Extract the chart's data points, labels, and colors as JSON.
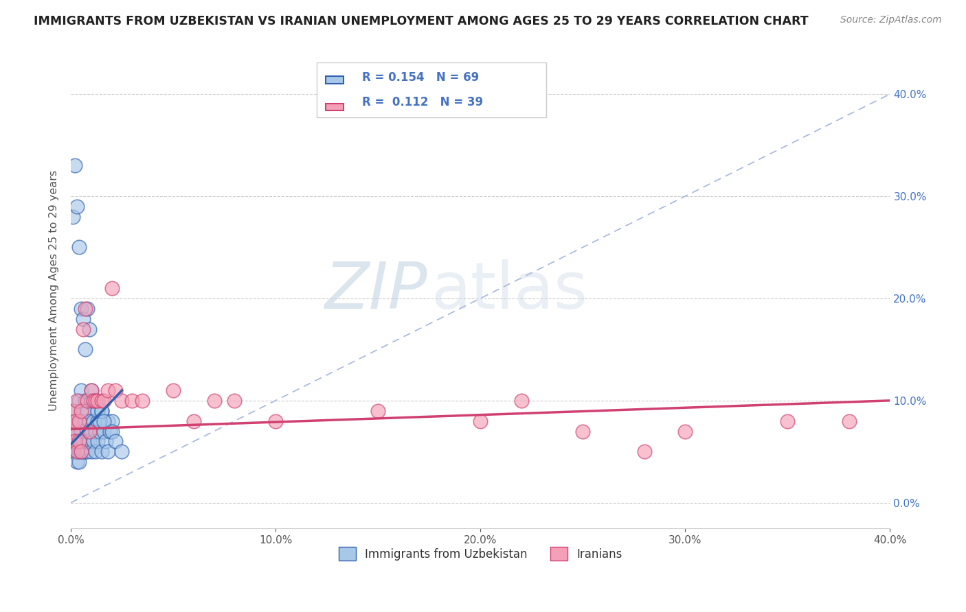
{
  "title": "IMMIGRANTS FROM UZBEKISTAN VS IRANIAN UNEMPLOYMENT AMONG AGES 25 TO 29 YEARS CORRELATION CHART",
  "source": "Source: ZipAtlas.com",
  "ylabel": "Unemployment Among Ages 25 to 29 years",
  "watermark": "ZIPatlas",
  "xlim": [
    0.0,
    0.4
  ],
  "ylim": [
    -0.025,
    0.44
  ],
  "xticks": [
    0.0,
    0.1,
    0.2,
    0.3,
    0.4
  ],
  "xticklabels": [
    "0.0%",
    "10.0%",
    "20.0%",
    "30.0%",
    "40.0%"
  ],
  "yticks": [
    0.0,
    0.1,
    0.2,
    0.3,
    0.4
  ],
  "yticklabels": [
    "0.0%",
    "10.0%",
    "20.0%",
    "30.0%",
    "40.0%"
  ],
  "legend1_label": "Immigrants from Uzbekistan",
  "legend2_label": "Iranians",
  "R1": "0.154",
  "N1": "69",
  "R2": "0.112",
  "N2": "39",
  "color_blue": "#a8c8e8",
  "color_pink": "#f4a0b8",
  "blue_line_color": "#3060b0",
  "pink_line_color": "#d04070",
  "grid_color": "#cccccc",
  "scatter_blue_x": [
    0.001,
    0.001,
    0.001,
    0.002,
    0.002,
    0.002,
    0.002,
    0.002,
    0.003,
    0.003,
    0.003,
    0.003,
    0.003,
    0.004,
    0.004,
    0.004,
    0.004,
    0.005,
    0.005,
    0.005,
    0.005,
    0.006,
    0.006,
    0.006,
    0.007,
    0.007,
    0.007,
    0.008,
    0.008,
    0.008,
    0.009,
    0.009,
    0.01,
    0.01,
    0.01,
    0.011,
    0.011,
    0.012,
    0.012,
    0.013,
    0.013,
    0.014,
    0.015,
    0.015,
    0.016,
    0.017,
    0.018,
    0.018,
    0.019,
    0.02,
    0.001,
    0.002,
    0.003,
    0.004,
    0.005,
    0.006,
    0.007,
    0.008,
    0.009,
    0.01,
    0.011,
    0.012,
    0.013,
    0.014,
    0.015,
    0.016,
    0.02,
    0.022,
    0.025
  ],
  "scatter_blue_y": [
    0.06,
    0.07,
    0.08,
    0.05,
    0.06,
    0.07,
    0.08,
    0.09,
    0.04,
    0.05,
    0.06,
    0.07,
    0.08,
    0.04,
    0.05,
    0.06,
    0.1,
    0.05,
    0.06,
    0.07,
    0.11,
    0.05,
    0.06,
    0.09,
    0.05,
    0.08,
    0.1,
    0.05,
    0.06,
    0.09,
    0.06,
    0.08,
    0.05,
    0.07,
    0.11,
    0.06,
    0.08,
    0.05,
    0.07,
    0.06,
    0.08,
    0.07,
    0.05,
    0.09,
    0.07,
    0.06,
    0.08,
    0.05,
    0.07,
    0.08,
    0.28,
    0.33,
    0.29,
    0.25,
    0.19,
    0.18,
    0.15,
    0.19,
    0.17,
    0.1,
    0.1,
    0.1,
    0.09,
    0.08,
    0.09,
    0.08,
    0.07,
    0.06,
    0.05
  ],
  "scatter_pink_x": [
    0.001,
    0.001,
    0.002,
    0.002,
    0.003,
    0.003,
    0.004,
    0.004,
    0.005,
    0.005,
    0.006,
    0.007,
    0.008,
    0.009,
    0.01,
    0.011,
    0.012,
    0.013,
    0.015,
    0.016,
    0.018,
    0.02,
    0.022,
    0.025,
    0.03,
    0.035,
    0.05,
    0.06,
    0.07,
    0.08,
    0.1,
    0.15,
    0.2,
    0.22,
    0.25,
    0.28,
    0.3,
    0.35,
    0.38
  ],
  "scatter_pink_y": [
    0.07,
    0.09,
    0.06,
    0.08,
    0.05,
    0.1,
    0.06,
    0.08,
    0.05,
    0.09,
    0.17,
    0.19,
    0.1,
    0.07,
    0.11,
    0.1,
    0.1,
    0.1,
    0.1,
    0.1,
    0.11,
    0.21,
    0.11,
    0.1,
    0.1,
    0.1,
    0.11,
    0.08,
    0.1,
    0.1,
    0.08,
    0.09,
    0.08,
    0.1,
    0.07,
    0.05,
    0.07,
    0.08,
    0.08
  ],
  "blue_trendline_x": [
    0.0,
    0.025
  ],
  "blue_trendline_y": [
    0.057,
    0.11
  ],
  "pink_trendline_x": [
    0.0,
    0.4
  ],
  "pink_trendline_y": [
    0.072,
    0.1
  ]
}
